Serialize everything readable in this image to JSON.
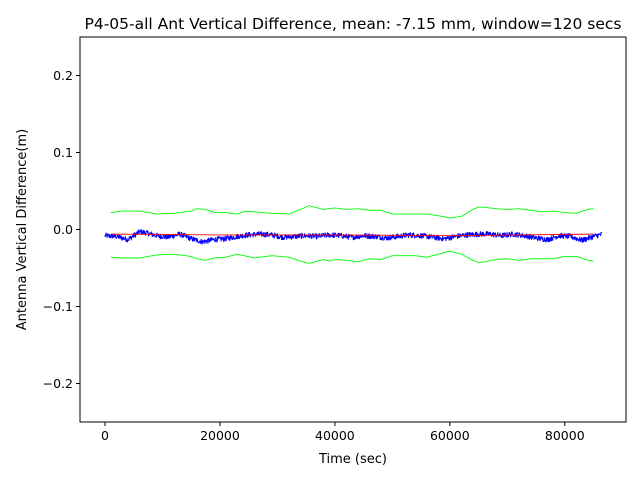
{
  "chart_data": {
    "type": "line",
    "title": "P4-05-all Ant Vertical Difference, mean: -7.15 mm, window=120 secs",
    "xlabel": "Time (sec)",
    "ylabel": "Antenna Vertical Difference(m)",
    "xlim": [
      -4350,
      90650
    ],
    "ylim": [
      -0.25,
      0.25
    ],
    "xticks": [
      0,
      20000,
      40000,
      60000,
      80000
    ],
    "xtick_labels": [
      "0",
      "20000",
      "40000",
      "60000",
      "80000"
    ],
    "yticks": [
      -0.2,
      -0.1,
      0.0,
      0.1,
      0.2
    ],
    "ytick_labels": [
      "−0.2",
      "−0.1",
      "0.0",
      "0.1",
      "0.2"
    ],
    "grid": false,
    "series": [
      {
        "name": "vertical difference",
        "color": "#0000ff",
        "kind": "noisy",
        "noise_amplitude": 0.0035,
        "x": [
          0,
          2000,
          4000,
          6000,
          7000,
          9000,
          11000,
          13000,
          15000,
          17000,
          19000,
          21000,
          23000,
          25000,
          27000,
          29000,
          31000,
          33000,
          35000,
          37000,
          39000,
          41000,
          43000,
          45000,
          47000,
          49000,
          51000,
          53000,
          55000,
          57000,
          59000,
          61000,
          63000,
          65000,
          67000,
          69000,
          71000,
          73000,
          75000,
          77000,
          79000,
          81000,
          83000,
          85000,
          86500
        ],
        "y": [
          -0.008,
          -0.009,
          -0.013,
          -0.003,
          -0.004,
          -0.008,
          -0.01,
          -0.006,
          -0.012,
          -0.016,
          -0.013,
          -0.012,
          -0.009,
          -0.007,
          -0.006,
          -0.007,
          -0.01,
          -0.009,
          -0.008,
          -0.009,
          -0.007,
          -0.008,
          -0.01,
          -0.008,
          -0.009,
          -0.011,
          -0.009,
          -0.007,
          -0.008,
          -0.01,
          -0.012,
          -0.009,
          -0.007,
          -0.006,
          -0.006,
          -0.008,
          -0.006,
          -0.008,
          -0.011,
          -0.013,
          -0.008,
          -0.009,
          -0.014,
          -0.009,
          -0.006
        ]
      },
      {
        "name": "running mean",
        "color": "#ff0000",
        "kind": "line",
        "x": [
          1000,
          20000,
          40000,
          60000,
          85000
        ],
        "y": [
          -0.006,
          -0.007,
          -0.007,
          -0.008,
          -0.006
        ]
      },
      {
        "name": "upper bound",
        "color": "#00ff00",
        "kind": "line",
        "x": [
          1000,
          3000,
          6000,
          9000,
          12000,
          15000,
          16000,
          17500,
          19000,
          21000,
          23000,
          24500,
          26000,
          29000,
          32000,
          34000,
          35500,
          37000,
          38000,
          39000,
          40000,
          42000,
          44000,
          46000,
          48000,
          50000,
          52000,
          54000,
          56000,
          58000,
          60000,
          62000,
          64000,
          65000,
          66000,
          68000,
          70000,
          72000,
          74000,
          76000,
          78000,
          80000,
          82000,
          84000,
          85000
        ],
        "y": [
          0.022,
          0.024,
          0.024,
          0.02,
          0.021,
          0.024,
          0.027,
          0.026,
          0.022,
          0.022,
          0.02,
          0.024,
          0.023,
          0.021,
          0.02,
          0.026,
          0.031,
          0.028,
          0.026,
          0.027,
          0.028,
          0.026,
          0.027,
          0.025,
          0.025,
          0.02,
          0.02,
          0.02,
          0.02,
          0.018,
          0.015,
          0.017,
          0.026,
          0.029,
          0.029,
          0.027,
          0.026,
          0.027,
          0.025,
          0.023,
          0.024,
          0.022,
          0.021,
          0.026,
          0.027
        ]
      },
      {
        "name": "lower bound",
        "color": "#00ff00",
        "kind": "line",
        "x": [
          1000,
          3000,
          6000,
          9000,
          12000,
          15000,
          16000,
          17500,
          19000,
          21000,
          23000,
          26000,
          29000,
          32000,
          34000,
          35500,
          37000,
          38000,
          39000,
          40000,
          42000,
          44000,
          46000,
          48000,
          50000,
          52000,
          54000,
          56000,
          58000,
          60000,
          62000,
          64000,
          65000,
          66000,
          68000,
          70000,
          72000,
          74000,
          76000,
          78000,
          80000,
          82000,
          84000,
          85000
        ],
        "y": [
          -0.036,
          -0.037,
          -0.037,
          -0.033,
          -0.032,
          -0.035,
          -0.038,
          -0.04,
          -0.037,
          -0.036,
          -0.032,
          -0.037,
          -0.034,
          -0.036,
          -0.041,
          -0.044,
          -0.041,
          -0.039,
          -0.041,
          -0.039,
          -0.04,
          -0.042,
          -0.038,
          -0.039,
          -0.034,
          -0.034,
          -0.034,
          -0.036,
          -0.032,
          -0.028,
          -0.032,
          -0.04,
          -0.043,
          -0.042,
          -0.039,
          -0.038,
          -0.04,
          -0.038,
          -0.038,
          -0.038,
          -0.035,
          -0.035,
          -0.04,
          -0.041
        ]
      }
    ]
  }
}
